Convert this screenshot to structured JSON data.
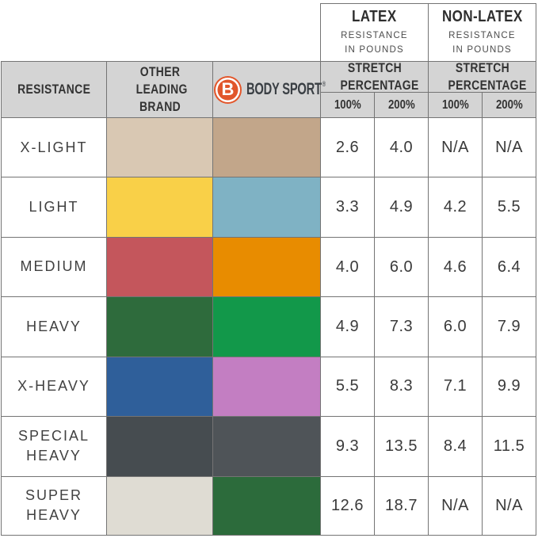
{
  "top_header": {
    "latex": {
      "title": "LATEX",
      "subtitle": "RESISTANCE IN POUNDS"
    },
    "non_latex": {
      "title": "NON-LATEX",
      "subtitle": "RESISTANCE IN POUNDS"
    }
  },
  "columns": {
    "resistance": "RESISTANCE",
    "other_brand": "OTHER LEADING BRAND",
    "stretch": "STRETCH PERCENTAGE",
    "pct100": "100%",
    "pct200": "200%"
  },
  "brand": {
    "logo_letter": "B",
    "name": "BODY SPORT",
    "trademark": "®",
    "logo_color": "#e1562b",
    "name_color": "#3a3f44"
  },
  "style_colors": {
    "header_bg": "#d4d4d4",
    "grid_border": "#747474"
  },
  "chart_data": {
    "type": "table",
    "columns": [
      "RESISTANCE",
      "OTHER LEADING BRAND",
      "BODY SPORT",
      "LATEX STRETCH 100%",
      "LATEX STRETCH 200%",
      "NON-LATEX STRETCH 100%",
      "NON-LATEX STRETCH 200%"
    ],
    "units": "RESISTANCE IN POUNDS",
    "rows": [
      {
        "label": "X-LIGHT",
        "other_brand_color": "#d9c8b3",
        "body_sport_color": "#c2a68a",
        "values": [
          "2.6",
          "4.0",
          "N/A",
          "N/A"
        ]
      },
      {
        "label": "LIGHT",
        "other_brand_color": "#f9d048",
        "body_sport_color": "#7fb2c4",
        "values": [
          "3.3",
          "4.9",
          "4.2",
          "5.5"
        ]
      },
      {
        "label": "MEDIUM",
        "other_brand_color": "#c4565c",
        "body_sport_color": "#e88c00",
        "values": [
          "4.0",
          "6.0",
          "4.6",
          "6.4"
        ]
      },
      {
        "label": "HEAVY",
        "other_brand_color": "#2e6b3c",
        "body_sport_color": "#12984a",
        "values": [
          "4.9",
          "7.3",
          "6.0",
          "7.9"
        ]
      },
      {
        "label": "X-HEAVY",
        "other_brand_color": "#2f5f9a",
        "body_sport_color": "#c37ec2",
        "values": [
          "5.5",
          "8.3",
          "7.1",
          "9.9"
        ]
      },
      {
        "label": "SPECIAL HEAVY",
        "other_brand_color": "#464c50",
        "body_sport_color": "#4f5458",
        "values": [
          "9.3",
          "13.5",
          "8.4",
          "11.5"
        ]
      },
      {
        "label": "SUPER HEAVY",
        "other_brand_color": "#dfdcd3",
        "body_sport_color": "#2c6b3b",
        "values": [
          "12.6",
          "18.7",
          "N/A",
          "N/A"
        ]
      }
    ]
  }
}
